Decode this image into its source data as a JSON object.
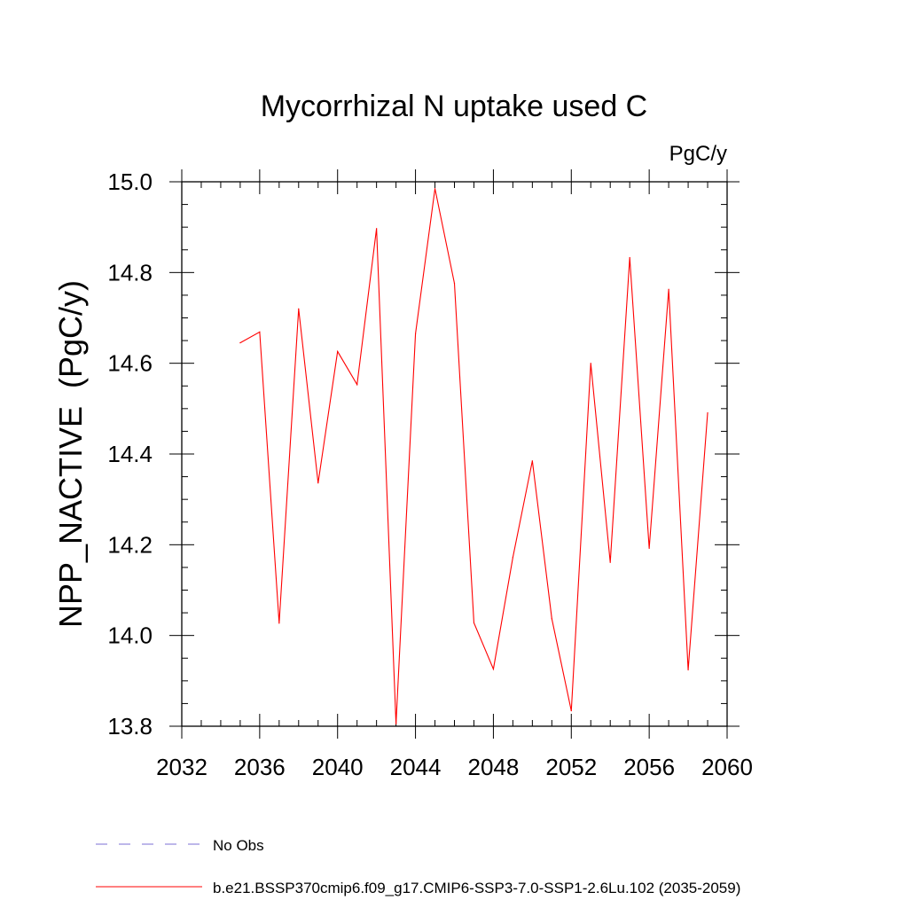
{
  "chart_data": {
    "type": "line",
    "title": "Mycorrhizal N uptake used C",
    "units": "PgC/y",
    "ylabel": "NPP_NACTIVE  (PgC/y)",
    "xlabel": "",
    "xlim": [
      2032,
      2060
    ],
    "ylim": [
      13.8,
      15.0
    ],
    "x_ticks": [
      "2032",
      "2036",
      "2040",
      "2044",
      "2048",
      "2052",
      "2056",
      "2060"
    ],
    "y_ticks": [
      "13.8",
      "14.0",
      "14.2",
      "14.4",
      "14.6",
      "14.8",
      "15.0"
    ],
    "grid": false,
    "series": [
      {
        "name": "b.e21.BSSP370cmip6.f09_g17.CMIP6-SSP3-7.0-SSP1-2.6Lu.102 (2035-2059)",
        "color": "#ff0000",
        "style": "solid",
        "x": [
          2035,
          2036,
          2037,
          2038,
          2039,
          2040,
          2041,
          2042,
          2043,
          2044,
          2045,
          2046,
          2047,
          2048,
          2049,
          2050,
          2051,
          2052,
          2053,
          2054,
          2055,
          2056,
          2057,
          2058,
          2059
        ],
        "y": [
          14.645,
          14.669,
          14.027,
          14.72,
          14.336,
          14.626,
          14.553,
          14.897,
          13.805,
          14.665,
          14.985,
          14.776,
          14.028,
          13.926,
          14.172,
          14.385,
          14.037,
          13.834,
          14.6,
          14.161,
          14.833,
          14.192,
          14.763,
          13.924,
          14.491
        ]
      }
    ],
    "legend": [
      {
        "label": "No Obs",
        "color": "#7b6fd6",
        "style": "dashed"
      },
      {
        "label": "b.e21.BSSP370cmip6.f09_g17.CMIP6-SSP3-7.0-SSP1-2.6Lu.102 (2035-2059)",
        "color": "#ff0000",
        "style": "solid"
      }
    ]
  }
}
